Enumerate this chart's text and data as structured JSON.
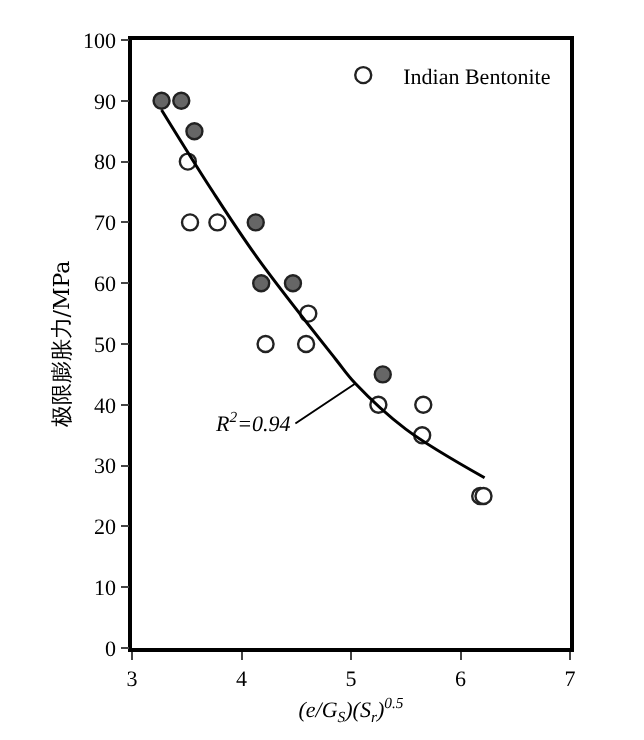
{
  "chart_data": {
    "type": "scatter",
    "xlabel": "(e/G$_{S}$)(S$_{r}$)$^{0.5}$",
    "ylabel": "极限膨胀力/MPa",
    "xlim": [
      3,
      7
    ],
    "xticks": [
      3,
      4,
      5,
      6,
      7
    ],
    "ylim": [
      0,
      100
    ],
    "yticks": [
      0,
      10,
      20,
      30,
      40,
      50,
      60,
      70,
      80,
      90,
      100
    ],
    "grid": false,
    "legend": "top right",
    "marker": "circle",
    "series": [
      {
        "color": "#666666",
        "x": [
          3.27,
          3.45,
          3.57,
          4.13,
          4.18,
          4.47,
          5.29
        ],
        "values": [
          90,
          90,
          85,
          70,
          60,
          60,
          45
        ]
      },
      {
        "name": "Indian Bentonite",
        "color": "#ffffff",
        "x": [
          3.51,
          3.53,
          3.78,
          4.61,
          4.22,
          4.59,
          5.25,
          5.66,
          5.65,
          6.18,
          6.21
        ],
        "values": [
          80,
          70,
          70,
          55,
          50,
          50,
          40,
          40,
          35,
          25,
          25
        ]
      },
      {
        "type": "line",
        "color": "#000000",
        "marker": "none",
        "line_style": "solid",
        "x": [
          3.27,
          3.74,
          4.16,
          4.86,
          5.04,
          5.5,
          6.22
        ],
        "values": [
          88.5,
          75,
          63.8,
          47.5,
          43.5,
          36,
          28
        ]
      }
    ],
    "annotations": [
      {
        "text": "R$^{2}$=0.94",
        "x": 5.04,
        "y": 43.5
      }
    ]
  }
}
